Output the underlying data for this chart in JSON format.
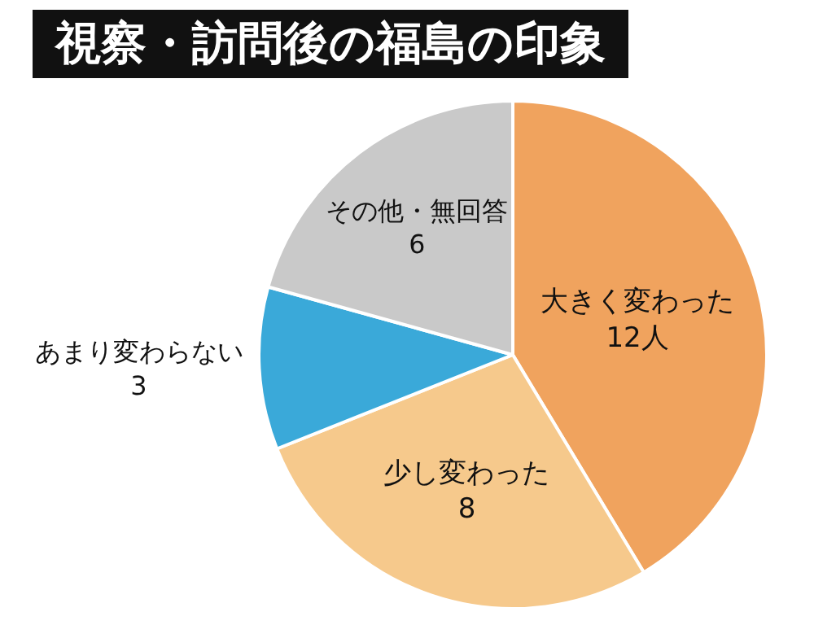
{
  "chart_data": {
    "type": "pie",
    "title": "視察・訪問後の福島の印象",
    "categories": [
      "大きく変わった",
      "少し変わった",
      "あまり変わらない",
      "その他・無回答"
    ],
    "values": [
      12,
      8,
      3,
      6
    ],
    "value_labels": [
      "12人",
      "8",
      "3",
      "6"
    ],
    "colors": [
      "#f0a35e",
      "#f6c98c",
      "#3aa9d9",
      "#c9c9c9"
    ],
    "legend": false
  }
}
